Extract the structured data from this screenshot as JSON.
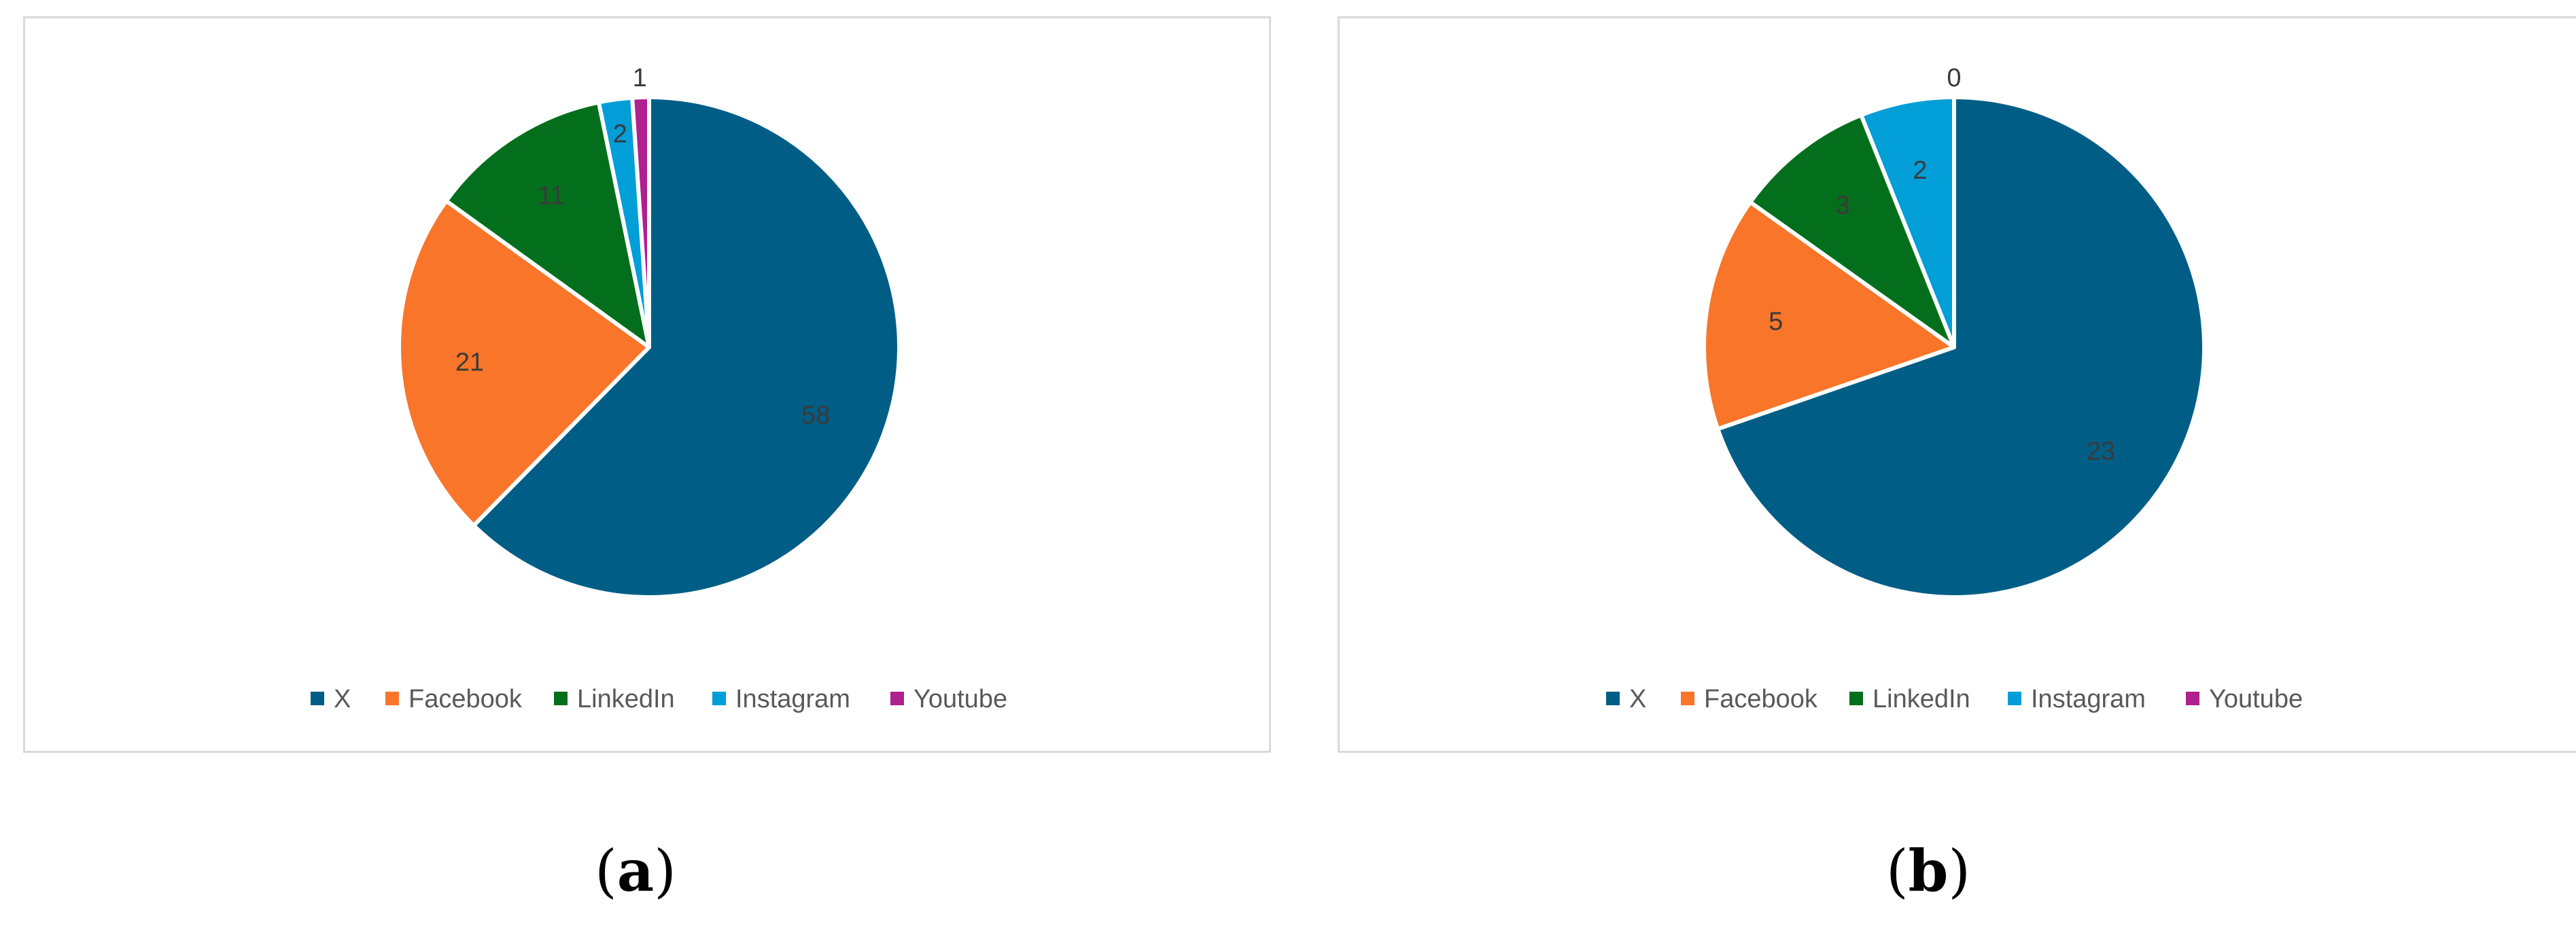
{
  "chart_data": [
    {
      "type": "pie",
      "title": "",
      "caption": "a",
      "legend_position": "bottom",
      "categories": [
        "X",
        "Facebook",
        "LinkedIn",
        "Instagram",
        "Youtube"
      ],
      "values": [
        58,
        21,
        11,
        2,
        1
      ],
      "colors": [
        "#005E86",
        "#F8752A",
        "#036F1C",
        "#029ED8",
        "#B0208F"
      ],
      "data_labels": [
        "58",
        "21",
        "11",
        "2",
        "1"
      ]
    },
    {
      "type": "pie",
      "title": "",
      "caption": "b",
      "legend_position": "bottom",
      "categories": [
        "X",
        "Facebook",
        "LinkedIn",
        "Instagram",
        "Youtube"
      ],
      "values": [
        23,
        5,
        3,
        2,
        0
      ],
      "colors": [
        "#005E86",
        "#F8752A",
        "#036F1C",
        "#029ED8",
        "#B0208F"
      ],
      "data_labels": [
        "23",
        "5",
        "3",
        "2",
        "0"
      ]
    }
  ]
}
